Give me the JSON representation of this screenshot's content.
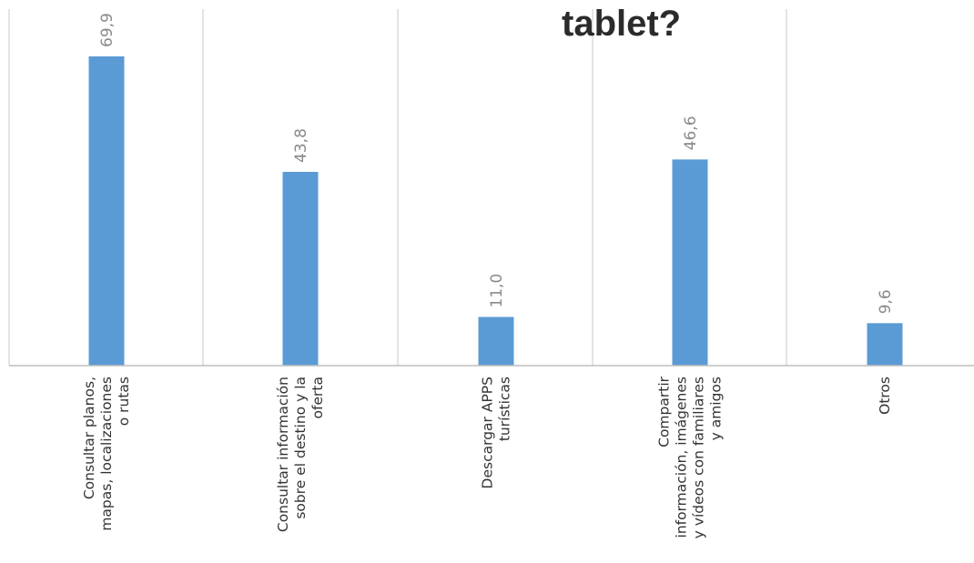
{
  "chart_data": {
    "type": "bar",
    "title": "tablet?",
    "categories": [
      [
        "Consultar planos,",
        "mapas, localizaciones",
        "o rutas"
      ],
      [
        "Consultar información",
        "sobre el destino y la",
        "oferta"
      ],
      [
        "Descargar APPS",
        "turísticas"
      ],
      [
        "Compartir",
        "información, imágenes",
        "y vídeos con familiares",
        "y amigos"
      ],
      [
        "Otros"
      ]
    ],
    "values": [
      69.9,
      43.8,
      11.0,
      46.6,
      9.6
    ],
    "value_labels": [
      "69,9",
      "43,8",
      "11,0",
      "46,6",
      "9,6"
    ],
    "ylim": [
      0,
      80
    ],
    "grid": "vertical-separators",
    "legend": "none",
    "colors": {
      "bar": "#5b9bd5",
      "gridline": "#c8c8c8",
      "axis": "#bfbfbf",
      "value_label": "#8a8a8a",
      "title": "#2b2b2b",
      "category_label": "#333333"
    }
  }
}
